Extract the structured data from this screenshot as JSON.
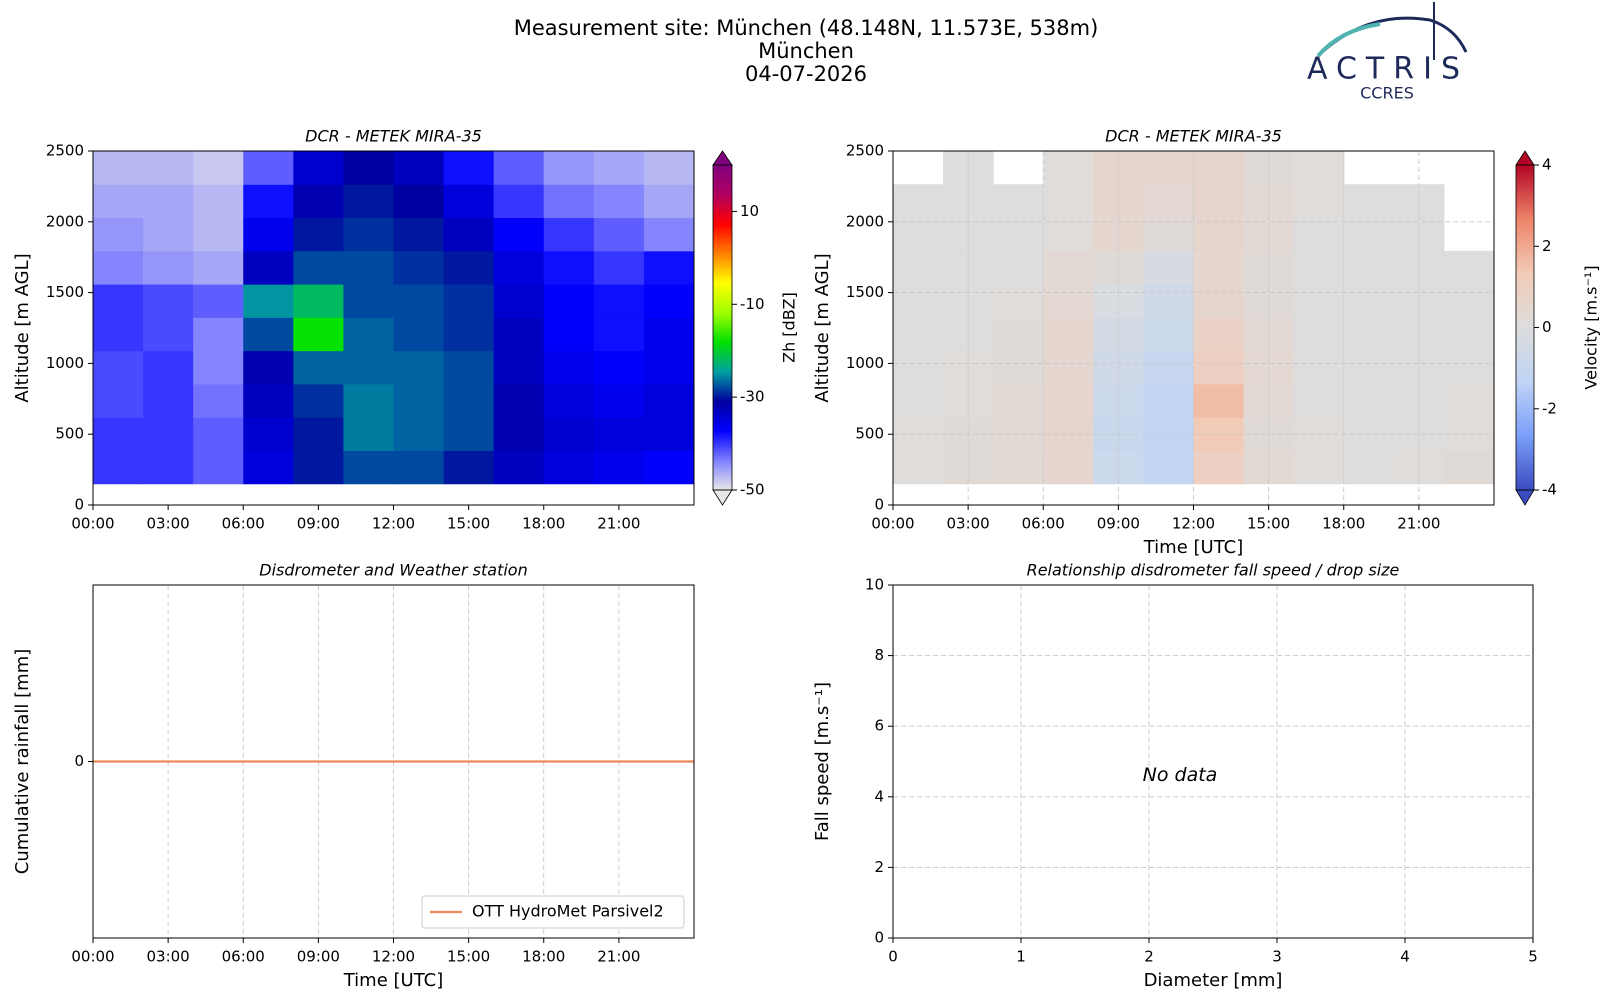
{
  "header": {
    "lines": [
      "Measurement site: München (48.148N, 11.573E, 538m)",
      "München",
      "04-07-2026"
    ],
    "logo": {
      "name": "ACTRIS",
      "subtitle": "CCRES"
    }
  },
  "chart_data": [
    {
      "type": "heatmap",
      "title": "DCR - METEK MIRA-35",
      "ylabel": "Altitude [m AGL]",
      "xlim": [
        0,
        24
      ],
      "xticks": [
        {
          "value": 0,
          "label": "00:00"
        },
        {
          "value": 3,
          "label": "03:00"
        },
        {
          "value": 6,
          "label": "06:00"
        },
        {
          "value": 9,
          "label": "09:00"
        },
        {
          "value": 12,
          "label": "12:00"
        },
        {
          "value": 15,
          "label": "15:00"
        },
        {
          "value": 18,
          "label": "18:00"
        },
        {
          "value": 21,
          "label": "21:00"
        }
      ],
      "ylim": [
        0,
        2500
      ],
      "yticks": [
        0,
        500,
        1000,
        1500,
        2000,
        2500
      ],
      "grid": false,
      "x_bins": [
        0,
        2,
        4,
        6,
        8,
        10,
        12,
        14,
        16,
        18,
        20,
        22,
        24
      ],
      "y_bins": [
        150,
        385,
        620,
        855,
        1090,
        1325,
        1560,
        1795,
        2030,
        2265,
        2500
      ],
      "z": [
        [
          -40,
          -40,
          -42,
          -35,
          -30,
          -28,
          -28,
          -30,
          -33,
          -35,
          -36,
          -37
        ],
        [
          -40,
          -40,
          -42,
          -34,
          -30,
          -26,
          -27,
          -28,
          -32,
          -34,
          -35,
          -35
        ],
        [
          -41,
          -40,
          -43,
          -33,
          -29,
          -26,
          -27,
          -28,
          -32,
          -35,
          -36,
          -35
        ],
        [
          -41,
          -40,
          -44,
          -32,
          -27,
          -27,
          -27,
          -28,
          -33,
          -36,
          -37,
          -36
        ],
        [
          -40,
          -41,
          -44,
          -28,
          -18,
          -27,
          -28,
          -29,
          -33,
          -37,
          -38,
          -36
        ],
        [
          -40,
          -41,
          -42,
          -25,
          -22,
          -28,
          -28,
          -29,
          -34,
          -37,
          -38,
          -37
        ],
        [
          -44,
          -45,
          -46,
          -33,
          -28,
          -28,
          -29,
          -30,
          -35,
          -38,
          -40,
          -38
        ],
        [
          -45,
          -46,
          -47,
          -36,
          -30,
          -29,
          -30,
          -33,
          -37,
          -40,
          -42,
          -44
        ],
        [
          -46,
          -46,
          -47,
          -38,
          -32,
          -30,
          -31,
          -35,
          -40,
          -43,
          -44,
          -46
        ],
        [
          -47,
          -47,
          -48,
          -42,
          -34,
          -31,
          -33,
          -38,
          -42,
          -45,
          -46,
          -47
        ]
      ],
      "colorbar": {
        "label": "Zh [dBZ]",
        "clim": [
          -50,
          20
        ],
        "ticks": [
          -50,
          -30,
          -10,
          10
        ],
        "colors": [
          "#e8e8e8",
          "#7f7fff",
          "#0000ff",
          "#0000a0",
          "#00a0a0",
          "#00e000",
          "#a0ff00",
          "#ffff00",
          "#ff8000",
          "#ff0000",
          "#b00060",
          "#800080"
        ]
      }
    },
    {
      "type": "heatmap",
      "title": "DCR - METEK MIRA-35",
      "xlabel": "Time [UTC]",
      "ylabel": "Altitude [m AGL]",
      "xlim": [
        0,
        24
      ],
      "xticks": [
        {
          "value": 0,
          "label": "00:00"
        },
        {
          "value": 3,
          "label": "03:00"
        },
        {
          "value": 6,
          "label": "06:00"
        },
        {
          "value": 9,
          "label": "09:00"
        },
        {
          "value": 12,
          "label": "12:00"
        },
        {
          "value": 15,
          "label": "15:00"
        },
        {
          "value": 18,
          "label": "18:00"
        },
        {
          "value": 21,
          "label": "21:00"
        }
      ],
      "ylim": [
        0,
        2500
      ],
      "yticks": [
        0,
        500,
        1000,
        1500,
        2000,
        2500
      ],
      "grid": true,
      "x_bins": [
        0,
        2,
        4,
        6,
        8,
        10,
        12,
        14,
        16,
        18,
        20,
        22,
        24
      ],
      "y_bins": [
        150,
        385,
        620,
        855,
        1090,
        1325,
        1560,
        1795,
        2030,
        2265,
        2500
      ],
      "z": [
        [
          0.1,
          0.2,
          0.3,
          0.5,
          -0.8,
          -1.2,
          1.0,
          0.3,
          0.1,
          0,
          0.1,
          0.2
        ],
        [
          0.1,
          0.2,
          0.3,
          0.6,
          -0.9,
          -1.3,
          1.3,
          0.2,
          0.1,
          0,
          0,
          0.1
        ],
        [
          0,
          0.1,
          0.3,
          0.6,
          -0.8,
          -1.2,
          1.6,
          0.3,
          0,
          0,
          0,
          0.1
        ],
        [
          0,
          0.1,
          0.2,
          0.5,
          -0.6,
          -1.0,
          1.0,
          0.4,
          0,
          0,
          0,
          0
        ],
        [
          0,
          0,
          0.2,
          0.5,
          -0.4,
          -0.8,
          0.8,
          0.3,
          0,
          0,
          0,
          0
        ],
        [
          0,
          0,
          0.1,
          0.4,
          -0.2,
          -0.6,
          0.6,
          0.2,
          0,
          0,
          0,
          0
        ],
        [
          0,
          0,
          0,
          0.3,
          0.2,
          -0.3,
          0.5,
          0.2,
          0,
          0,
          0,
          0
        ],
        [
          0,
          0,
          0,
          0.1,
          0.5,
          0.2,
          0.6,
          0.3,
          0,
          0,
          0,
          null
        ],
        [
          0,
          0,
          0,
          0.1,
          0.6,
          0.4,
          0.6,
          0.3,
          0.1,
          0,
          0,
          null
        ],
        [
          null,
          0,
          null,
          0.1,
          0.6,
          0.5,
          0.6,
          0.2,
          0.1,
          null,
          null,
          null
        ]
      ],
      "colorbar": {
        "label": "Velocity [m.s⁻¹]",
        "clim": [
          -4,
          4
        ],
        "ticks": [
          -4,
          -2,
          0,
          2,
          4
        ],
        "colors": [
          "#3b4cc0",
          "#7b9ff9",
          "#c0d4f5",
          "#dddddd",
          "#f2cbb7",
          "#ee8468",
          "#b40426"
        ]
      }
    },
    {
      "type": "line",
      "title": "Disdrometer and Weather station",
      "xlabel": "Time [UTC]",
      "ylabel": "Cumulative rainfall [mm]",
      "xlim": [
        0,
        24
      ],
      "xticks": [
        {
          "value": 0,
          "label": "00:00"
        },
        {
          "value": 3,
          "label": "03:00"
        },
        {
          "value": 6,
          "label": "06:00"
        },
        {
          "value": 9,
          "label": "09:00"
        },
        {
          "value": 12,
          "label": "12:00"
        },
        {
          "value": 15,
          "label": "15:00"
        },
        {
          "value": 18,
          "label": "18:00"
        },
        {
          "value": 21,
          "label": "21:00"
        }
      ],
      "ylim": [
        -1,
        1
      ],
      "yticks": [
        0
      ],
      "grid": true,
      "legend": "lower right",
      "x": [
        0,
        24
      ],
      "series": [
        {
          "name": "OTT HydroMet Parsivel2",
          "color": "#f0875a",
          "values": [
            0,
            0
          ]
        }
      ]
    },
    {
      "type": "scatter",
      "title": "Relationship disdrometer fall speed / drop size",
      "xlabel": "Diameter [mm]",
      "ylabel": "Fall speed [m.s⁻¹]",
      "xlim": [
        0,
        5
      ],
      "xticks": [
        0,
        1,
        2,
        3,
        4,
        5
      ],
      "ylim": [
        0,
        10
      ],
      "yticks": [
        0,
        2,
        4,
        6,
        8,
        10
      ],
      "grid": true,
      "annotation": "No data"
    }
  ]
}
